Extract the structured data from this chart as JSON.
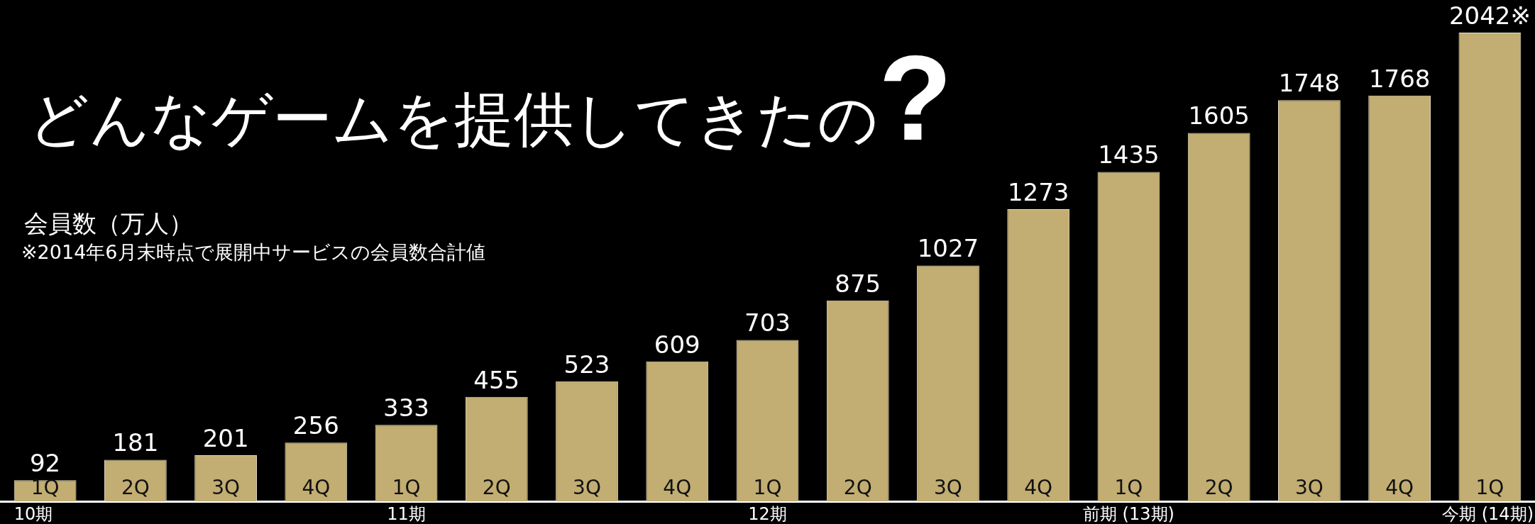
{
  "chart_data": {
    "type": "bar",
    "title": "どんなゲームを提供してきたの?",
    "ylabel": "会員数（万人）",
    "annotations": [
      "※2014年6月末時点で展開中サービスの会員数合計値",
      "10期",
      "11期",
      "12期",
      "前期 (13期)",
      "今期 (14期)"
    ],
    "categories": [
      "1Q",
      "2Q",
      "3Q",
      "4Q",
      "1Q",
      "2Q",
      "3Q",
      "4Q",
      "1Q",
      "2Q",
      "3Q",
      "4Q",
      "1Q",
      "2Q",
      "3Q",
      "4Q",
      "1Q"
    ],
    "values": [
      92,
      181,
      201,
      256,
      333,
      455,
      523,
      609,
      703,
      875,
      1027,
      1273,
      1435,
      1605,
      1748,
      1768,
      2042
    ],
    "value_labels": [
      "92",
      "181",
      "201",
      "256",
      "333",
      "455",
      "523",
      "609",
      "703",
      "875",
      "1027",
      "1273",
      "1435",
      "1605",
      "1748",
      "1768",
      "2042※"
    ],
    "color": "#c2ad72",
    "legend": false
  }
}
